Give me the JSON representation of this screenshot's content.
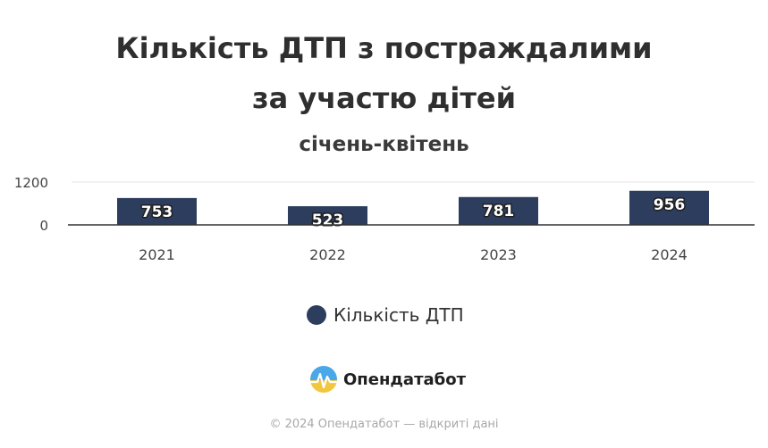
{
  "title_lines": [
    "Кількість ДТП з постраждалими",
    "за участю дітей"
  ],
  "subtitle": "січень-квітень",
  "chart_data": {
    "type": "bar",
    "categories": [
      "2021",
      "2022",
      "2023",
      "2024"
    ],
    "series": [
      {
        "name": "Кількість ДТП",
        "values": [
          753,
          523,
          781,
          956
        ],
        "color": "#2d3d5e"
      }
    ],
    "title": "Кількість ДТП з постраждалими за участю дітей",
    "subtitle": "січень-квітень",
    "xlabel": "",
    "ylabel": "",
    "ylim": [
      0,
      1200
    ],
    "yticks": [
      "0",
      "1200"
    ],
    "grid": true,
    "data_labels": true,
    "legend_position": "bottom"
  },
  "legend": {
    "label": "Кількість ДТП",
    "color": "#2d3d5e"
  },
  "brand": {
    "name": "Опендатабот",
    "logo_icon": "opendatabot-logo-icon"
  },
  "footer": {
    "text": "© 2024 Опендатабот — відкриті дані"
  }
}
